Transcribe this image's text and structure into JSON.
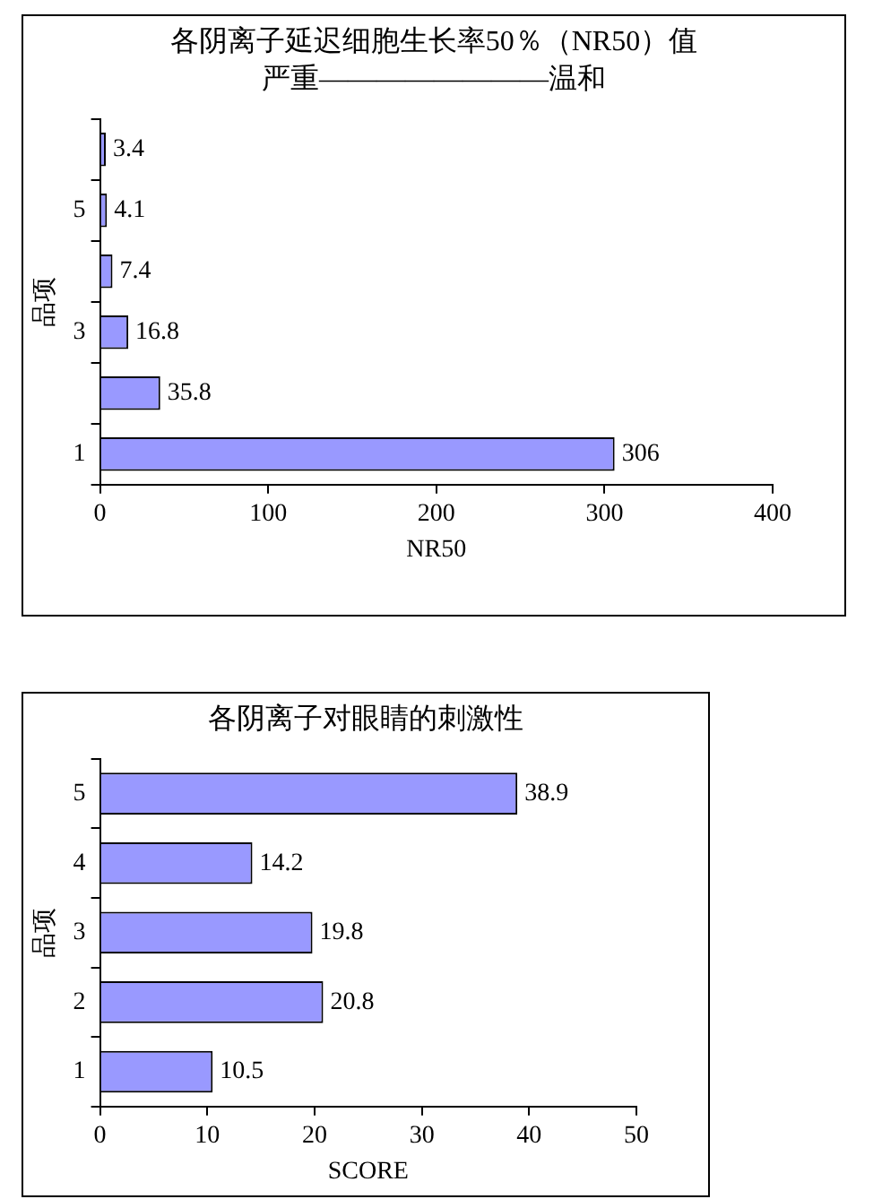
{
  "chart_data": [
    {
      "type": "bar",
      "orientation": "horizontal",
      "title": "各阴离子延迟细胞生长率50％（NR50）值",
      "subtitle": "严重————————温和",
      "xlabel": "NR50",
      "ylabel": "品项",
      "categories": [
        null,
        "5",
        null,
        "3",
        null,
        "1"
      ],
      "values": [
        3.4,
        4.1,
        7.4,
        16.8,
        35.8,
        306
      ],
      "color": "#9999ff",
      "xlim": [
        0,
        400
      ],
      "xticks": [
        0,
        100,
        200,
        300,
        400
      ],
      "grid": false,
      "legend": false,
      "data_labels": true
    },
    {
      "type": "bar",
      "orientation": "horizontal",
      "title": "各阴离子对眼睛的刺激性",
      "xlabel": "SCORE",
      "ylabel": "品项",
      "categories": [
        "5",
        "4",
        "3",
        "2",
        "1"
      ],
      "values": [
        38.9,
        14.2,
        19.8,
        20.8,
        10.5
      ],
      "color": "#9999ff",
      "xlim": [
        0,
        50
      ],
      "xticks": [
        0,
        10,
        20,
        30,
        40,
        50
      ],
      "grid": false,
      "legend": false,
      "data_labels": true
    }
  ]
}
